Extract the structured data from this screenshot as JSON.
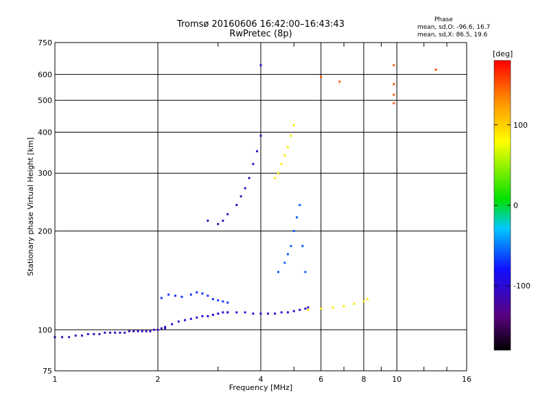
{
  "header": {
    "title_line1": "Tromsø 20160606 16:42:00–16:43:43",
    "title_line2": "RwPretec (8p)"
  },
  "phase_info": {
    "heading": "Phase",
    "o_line": "mean, sd,O: -96.6, 16.7",
    "x_line": "mean, sd,X:  86.5, 19.6"
  },
  "colorbar": {
    "unit_label": "[deg]",
    "ticks": [
      "100",
      "0",
      "-100"
    ],
    "tick_values": [
      100,
      0,
      -100
    ],
    "range": [
      -180,
      180
    ]
  },
  "chart_data": {
    "type": "scatter",
    "title": "Tromsø 20160606 16:42:00–16:43:43",
    "subtitle": "RwPretec (8p)",
    "xlabel": "Frequency [MHz]",
    "ylabel": "Stationary phase Virtual Height [km]",
    "x_scale": "log",
    "y_scale": "log",
    "xlim": [
      1,
      16
    ],
    "ylim": [
      75,
      750
    ],
    "x_ticks": [
      "1",
      "2",
      "4",
      "6",
      "8",
      "10",
      "16"
    ],
    "x_tick_values": [
      1,
      2,
      4,
      6,
      8,
      10,
      16
    ],
    "y_ticks": [
      "75",
      "100",
      "200",
      "300",
      "400",
      "500",
      "600",
      "750"
    ],
    "y_tick_values": [
      75,
      100,
      200,
      300,
      400,
      500,
      600,
      750
    ],
    "grid": true,
    "color_encoding": "phase [deg]",
    "series": [
      {
        "trace": "low E/F1 base trace",
        "phase": -110,
        "x": [
          1.0,
          1.05,
          1.1,
          1.15,
          1.2,
          1.25,
          1.3,
          1.35,
          1.4,
          1.45,
          1.5,
          1.55,
          1.6,
          1.65,
          1.7,
          1.75,
          1.8,
          1.85,
          1.9,
          1.95,
          2.0,
          2.05,
          2.1
        ],
        "y": [
          95,
          95,
          95,
          96,
          96,
          97,
          97,
          97,
          98,
          98,
          98,
          98,
          98,
          99,
          99,
          99,
          99,
          99,
          99,
          100,
          100,
          101,
          101
        ]
      },
      {
        "trace": "trace 2.1–3.2 MHz",
        "phase": -100,
        "x": [
          2.1,
          2.2,
          2.3,
          2.4,
          2.5,
          2.6,
          2.7,
          2.8,
          2.9,
          3.0,
          3.1,
          3.2
        ],
        "y": [
          102,
          104,
          106,
          107,
          108,
          109,
          110,
          110,
          111,
          112,
          113,
          113
        ]
      },
      {
        "trace": "upper scatter band 2–3 MHz",
        "phase": -70,
        "x": [
          2.05,
          2.15,
          2.25,
          2.35,
          2.5,
          2.6,
          2.7,
          2.8,
          2.9,
          3.0,
          3.1,
          3.2
        ],
        "y": [
          125,
          128,
          127,
          126,
          128,
          130,
          129,
          127,
          124,
          123,
          122,
          121
        ]
      },
      {
        "trace": "O-mode flat trace 3.2–5.5 MHz",
        "phase": -100,
        "x": [
          3.2,
          3.4,
          3.6,
          3.8,
          4.0,
          4.2,
          4.4,
          4.6,
          4.8,
          5.0,
          5.2,
          5.4,
          5.5
        ],
        "y": [
          113,
          113,
          113,
          112,
          112,
          112,
          112,
          113,
          113,
          114,
          115,
          116,
          117
        ]
      },
      {
        "trace": "X-mode trace 5.5–8.2 MHz",
        "phase": 90,
        "x": [
          5.5,
          6.0,
          6.5,
          7.0,
          7.5,
          8.0,
          8.2
        ],
        "y": [
          115,
          116,
          117,
          118,
          120,
          122,
          124
        ]
      },
      {
        "trace": "F2 O-mode trace",
        "phase": -110,
        "x": [
          2.8,
          3.0,
          3.1,
          3.2,
          3.4,
          3.5,
          3.6,
          3.7,
          3.8,
          3.9,
          4.0,
          4.0
        ],
        "y": [
          215,
          210,
          215,
          225,
          240,
          255,
          270,
          290,
          320,
          350,
          390,
          640
        ]
      },
      {
        "trace": "F2 X-mode trace",
        "phase": 90,
        "x": [
          4.4,
          4.5,
          4.6,
          4.7,
          4.8,
          4.9,
          5.0
        ],
        "y": [
          290,
          300,
          320,
          340,
          360,
          390,
          420
        ]
      },
      {
        "trace": "F1 cusp 4.5–5.5 MHz",
        "phase": -60,
        "x": [
          4.5,
          4.7,
          4.8,
          4.9,
          5.0,
          5.1,
          5.2,
          5.3,
          5.4
        ],
        "y": [
          150,
          160,
          170,
          180,
          200,
          220,
          240,
          180,
          150
        ]
      },
      {
        "trace": "scattered points",
        "phase": 150,
        "x": [
          6.0,
          6.8,
          9.8,
          9.8,
          9.8,
          9.8,
          13.0
        ],
        "y": [
          590,
          570,
          640,
          560,
          520,
          490,
          620
        ]
      }
    ]
  }
}
